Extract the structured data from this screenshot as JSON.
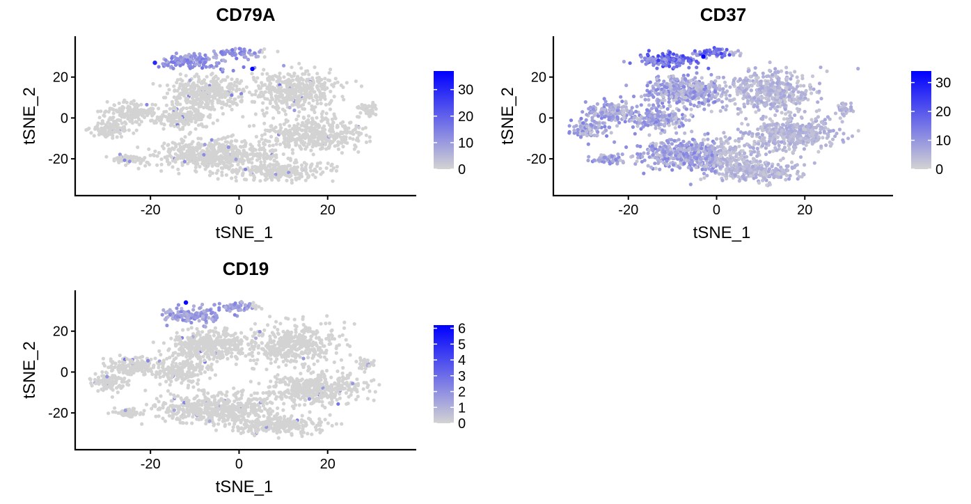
{
  "colors": {
    "low": "#d3d3d3",
    "high": "#0000ff",
    "axis": "#000000",
    "background": "#ffffff"
  },
  "chart_data": [
    {
      "type": "scatter",
      "title": "CD79A",
      "xlabel": "tSNE_1",
      "ylabel": "tSNE_2",
      "xlim": [
        -37,
        40
      ],
      "ylim": [
        -38,
        40
      ],
      "xticks": [
        -20,
        0,
        20
      ],
      "xtick_labels": [
        "-20",
        "0",
        "20"
      ],
      "yticks": [
        -20,
        0,
        20
      ],
      "ytick_labels": [
        "-20",
        "0",
        "20"
      ],
      "color_scale": {
        "min": 0,
        "max": 37,
        "ticks": [
          0,
          10,
          20,
          30
        ],
        "tick_labels": [
          "0",
          "10",
          "20",
          "30"
        ]
      },
      "hotspot": {
        "x_range": [
          -22,
          5
        ],
        "y_range": [
          22,
          36
        ],
        "level": 0.35
      },
      "peak_points": [
        {
          "x": 3,
          "y": 24,
          "value": 37
        },
        {
          "x": -19,
          "y": 27,
          "value": 30
        }
      ],
      "seed": 11,
      "grid": false,
      "legend": "right"
    },
    {
      "type": "scatter",
      "title": "CD37",
      "xlabel": "tSNE_1",
      "ylabel": "tSNE_2",
      "xlim": [
        -37,
        40
      ],
      "ylim": [
        -38,
        40
      ],
      "xticks": [
        -20,
        0,
        20
      ],
      "xtick_labels": [
        "-20",
        "0",
        "20"
      ],
      "yticks": [
        -20,
        0,
        20
      ],
      "ytick_labels": [
        "-20",
        "0",
        "20"
      ],
      "color_scale": {
        "min": 0,
        "max": 34,
        "ticks": [
          0,
          10,
          20,
          30
        ],
        "tick_labels": [
          "0",
          "10",
          "20",
          "30"
        ]
      },
      "hotspot": {
        "x_range": [
          -22,
          3
        ],
        "y_range": [
          22,
          36
        ],
        "level": 0.55
      },
      "peak_points": [
        {
          "x": -3,
          "y": 30,
          "value": 34
        }
      ],
      "seed": 29,
      "grid": false,
      "legend": "right"
    },
    {
      "type": "scatter",
      "title": "CD19",
      "xlabel": "tSNE_1",
      "ylabel": "tSNE_2",
      "xlim": [
        -37,
        40
      ],
      "ylim": [
        -38,
        40
      ],
      "xticks": [
        -20,
        0,
        20
      ],
      "xtick_labels": [
        "-20",
        "0",
        "20"
      ],
      "yticks": [
        -20,
        0,
        20
      ],
      "ytick_labels": [
        "-20",
        "0",
        "20"
      ],
      "color_scale": {
        "min": 0,
        "max": 6.2,
        "ticks": [
          0,
          1,
          2,
          3,
          4,
          5,
          6
        ],
        "tick_labels": [
          "0",
          "1",
          "2",
          "3",
          "4",
          "5",
          "6"
        ]
      },
      "hotspot": {
        "x_range": [
          -22,
          3
        ],
        "y_range": [
          22,
          36
        ],
        "level": 0.3
      },
      "peak_points": [
        {
          "x": -12,
          "y": 34,
          "value": 6
        }
      ],
      "seed": 47,
      "grid": false,
      "legend": "right"
    }
  ]
}
